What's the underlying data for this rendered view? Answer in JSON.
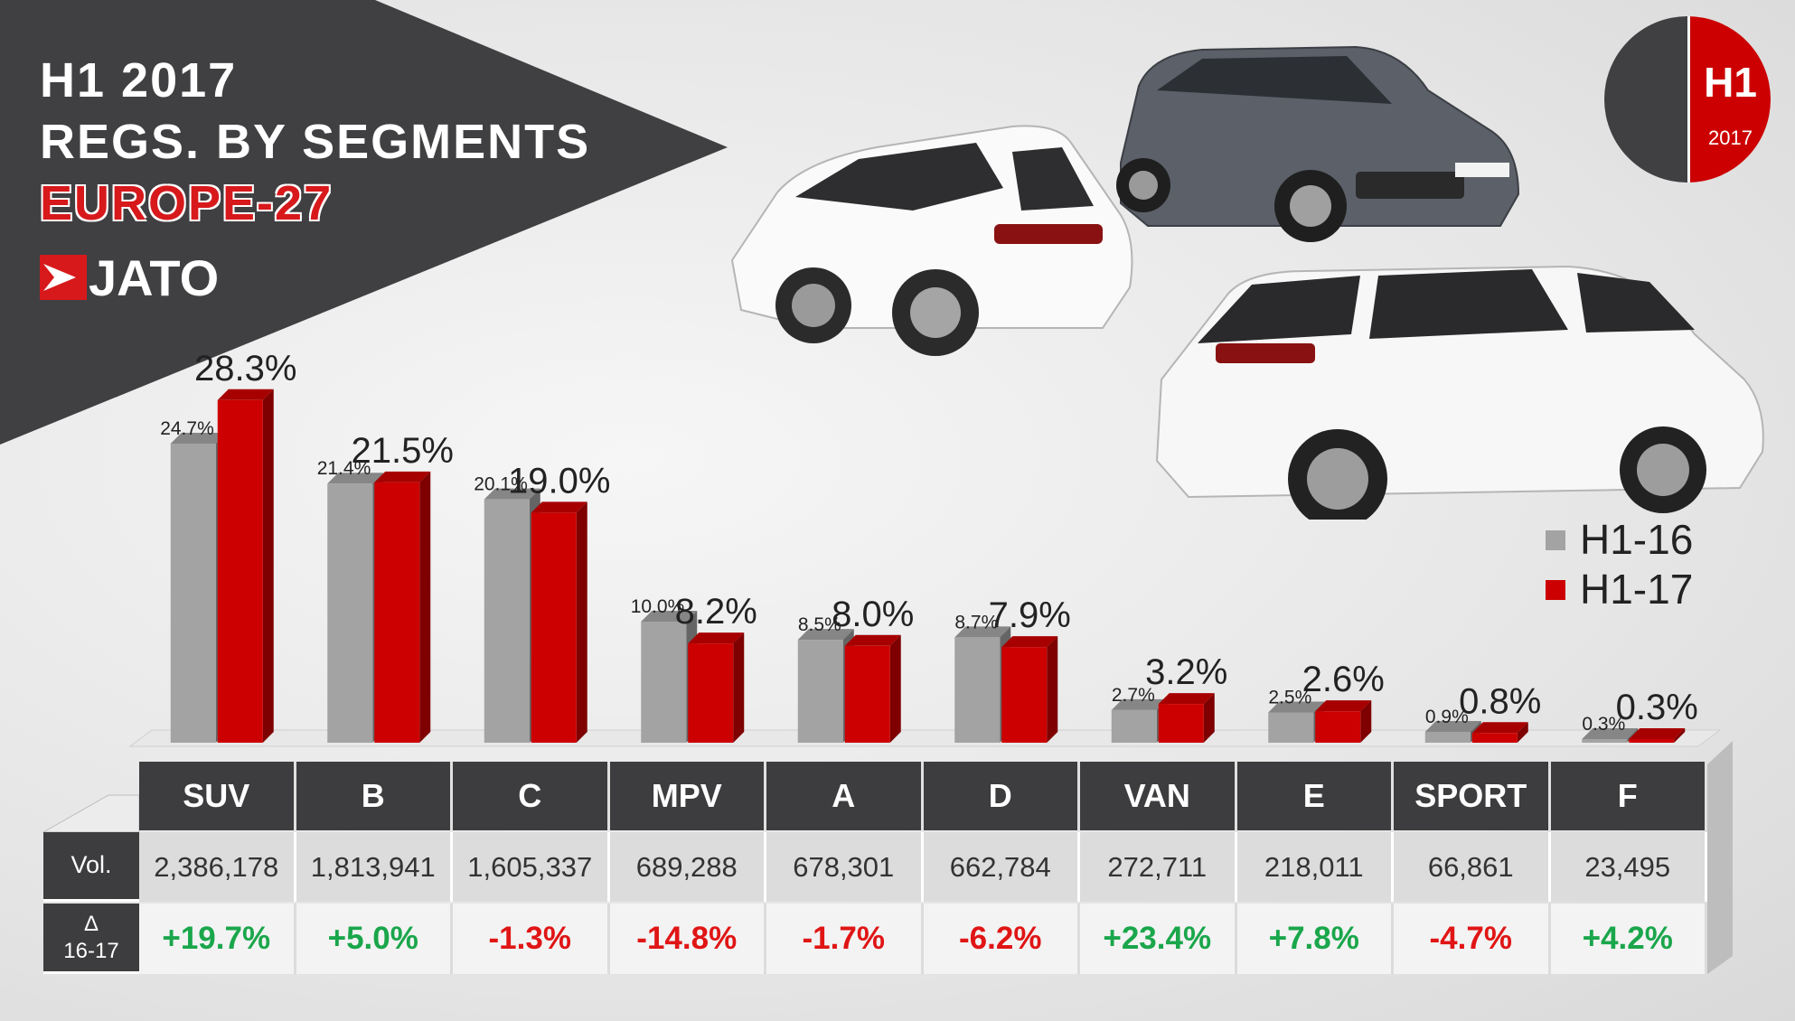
{
  "header": {
    "line1": "H1 2017",
    "line2": "REGS. BY SEGMENTS",
    "line3": "EUROPE-27",
    "logo_text": "JATO"
  },
  "badge": {
    "top": "H1",
    "bottom": "2017"
  },
  "legend": [
    {
      "label": "H1-16",
      "color": "#a3a3a3"
    },
    {
      "label": "H1-17",
      "color": "#cc0000"
    }
  ],
  "table": {
    "vol_label": "Vol.",
    "delta_symbol": "Δ",
    "delta_period": "16-17",
    "positive_color": "#1aa64b",
    "negative_color": "#e01515",
    "volumes": [
      "2,386,178",
      "1,813,941",
      "1,605,337",
      "689,288",
      "678,301",
      "662,784",
      "272,711",
      "218,011",
      "66,861",
      "23,495"
    ],
    "changes": [
      "+19.7%",
      "+5.0%",
      "-1.3%",
      "-14.8%",
      "-1.7%",
      "-6.2%",
      "+23.4%",
      "+7.8%",
      "-4.7%",
      "+4.2%"
    ]
  },
  "chart_data": {
    "type": "bar",
    "categories": [
      "SUV",
      "B",
      "C",
      "MPV",
      "A",
      "D",
      "VAN",
      "E",
      "SPORT",
      "F"
    ],
    "series": [
      {
        "name": "H1-16",
        "color": "#a3a3a3",
        "values": [
          24.7,
          21.4,
          20.1,
          10.0,
          8.5,
          8.7,
          2.7,
          2.5,
          0.9,
          0.3
        ],
        "labels": [
          "24.7%",
          "21.4%",
          "20.1%",
          "10.0%",
          "8.5%",
          "8.7%",
          "2.7%",
          "2.5%",
          "0.9%",
          "0.3%"
        ]
      },
      {
        "name": "H1-17",
        "color": "#cc0000",
        "values": [
          28.3,
          21.5,
          19.0,
          8.2,
          8.0,
          7.9,
          3.2,
          2.6,
          0.8,
          0.3
        ],
        "labels": [
          "28.3%",
          "21.5%",
          "19.0%",
          "8.2%",
          "8.0%",
          "7.9%",
          "3.2%",
          "2.6%",
          "0.8%",
          "0.3%"
        ]
      }
    ],
    "title": "",
    "xlabel": "",
    "ylabel": "",
    "grid": false,
    "legend_position": "right"
  }
}
